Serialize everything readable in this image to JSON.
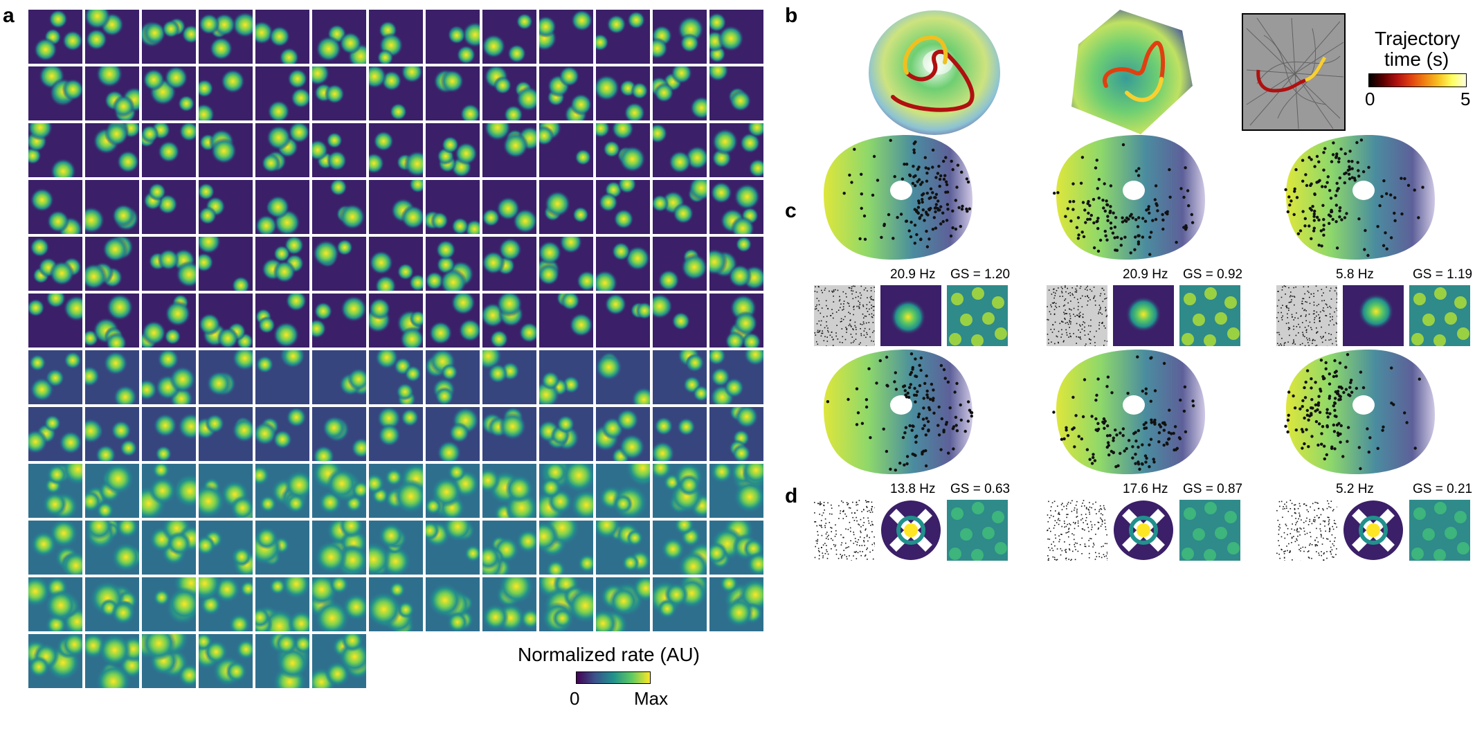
{
  "panels": {
    "a": "a",
    "b": "b",
    "c": "c",
    "d": "d"
  },
  "colorbar_rate": {
    "title": "Normalized rate (AU)",
    "min_label": "0",
    "max_label": "Max"
  },
  "colorbar_time": {
    "title_line1": "Trajectory",
    "title_line2": "time (s)",
    "min_label": "0",
    "max_label": "5"
  },
  "panel_c": [
    {
      "rate": "20.9 Hz",
      "gs": "GS = 1.20"
    },
    {
      "rate": "20.9 Hz",
      "gs": "GS = 0.92"
    },
    {
      "rate": "5.8 Hz",
      "gs": "GS = 1.19"
    }
  ],
  "panel_d": [
    {
      "rate": "13.8 Hz",
      "gs": "GS = 0.63"
    },
    {
      "rate": "17.6 Hz",
      "gs": "GS = 0.87"
    },
    {
      "rate": "5.2 Hz",
      "gs": "GS = 0.21"
    }
  ],
  "colors": {
    "viridis_dark": "#440154",
    "viridis_mid": "#21918c",
    "viridis_bright": "#fde725",
    "grid_bg": "#3b1f68"
  }
}
